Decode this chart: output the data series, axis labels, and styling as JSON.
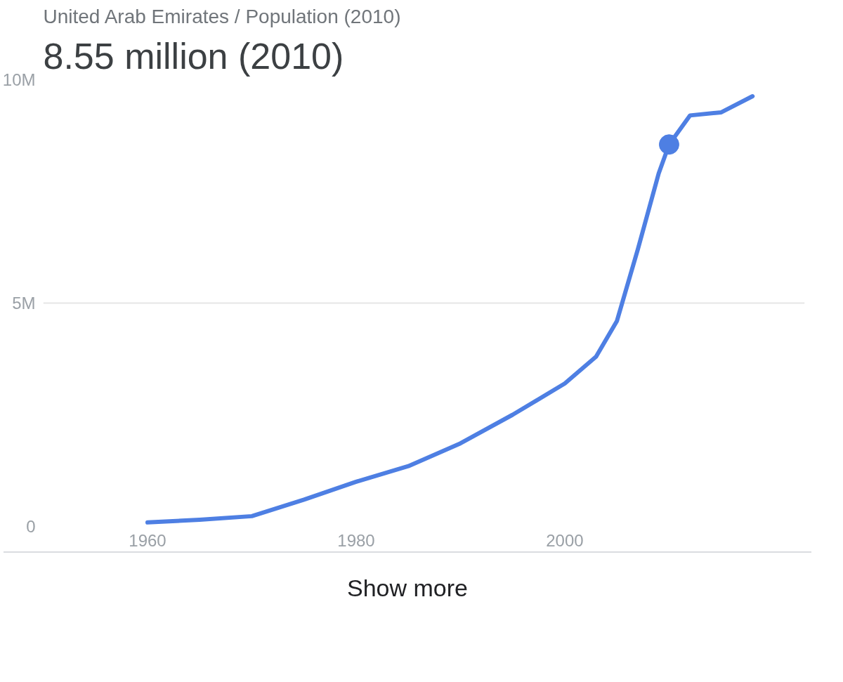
{
  "chart_data": {
    "type": "line",
    "title": "United Arab Emirates / Population (2010)",
    "subtitle": "8.55 million (2010)",
    "x": [
      1960,
      1965,
      1970,
      1975,
      1980,
      1985,
      1990,
      1995,
      2000,
      2003,
      2005,
      2007,
      2009,
      2010,
      2012,
      2015,
      2018
    ],
    "series": [
      {
        "color": "#4e7fe3",
        "marker": "none",
        "values": [
          0.09,
          0.15,
          0.23,
          0.6,
          1.0,
          1.35,
          1.86,
          2.5,
          3.2,
          3.8,
          4.6,
          6.2,
          7.9,
          8.55,
          9.2,
          9.27,
          9.63
        ]
      },
      {
        "type": "scatter",
        "marker": "circle",
        "color": "#4e7fe3",
        "x": [
          2010
        ],
        "values": [
          8.55
        ]
      }
    ],
    "xlim": [
      1950,
      2023
    ],
    "ylim": [
      0,
      10
    ],
    "xticks": [
      1960,
      1980,
      2000
    ],
    "yticks": [
      {
        "value": 0,
        "label": "0"
      },
      {
        "value": 5,
        "label": "5M"
      },
      {
        "value": 10,
        "label": "10M"
      }
    ],
    "grid": "y",
    "line_style": "solid",
    "annotations": [
      "Show more"
    ]
  }
}
